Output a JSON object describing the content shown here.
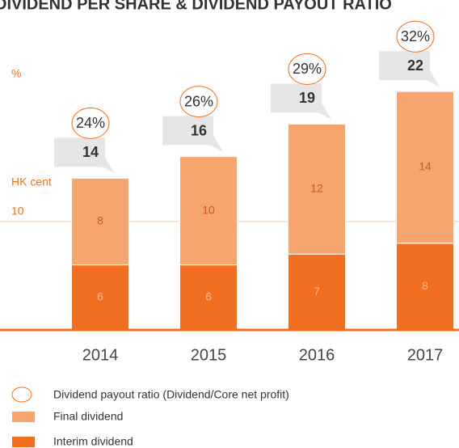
{
  "chart_data": {
    "type": "stacked_bar",
    "title": "DIVIDEND PER SHARE & DIVIDEND PAYOUT RATIO",
    "y_label": "HK cent",
    "y2_label": "%",
    "categories": [
      "2014",
      "2015",
      "2016",
      "2017"
    ],
    "series": [
      {
        "name": "Interim dividend",
        "color": "#f26f21",
        "values": [
          6,
          6,
          7,
          8
        ]
      },
      {
        "name": "Final dividend",
        "color": "#f7a56e",
        "values": [
          8,
          10,
          12,
          14
        ]
      }
    ],
    "totals": [
      14,
      16,
      19,
      22
    ],
    "payout_ratio": {
      "name": "Dividend payout ratio (Dividend/Core net profit)",
      "values": [
        24,
        26,
        29,
        32
      ],
      "value_labels": [
        "24%",
        "26%",
        "29%",
        "32%"
      ]
    },
    "ylim": [
      0,
      30
    ],
    "yticks": [
      10
    ],
    "grid": true
  }
}
